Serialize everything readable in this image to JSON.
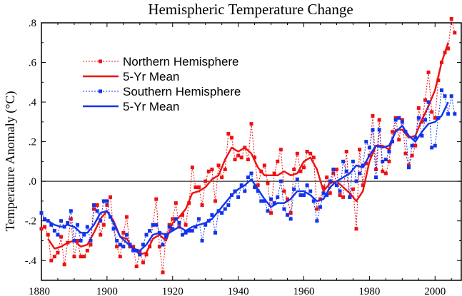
{
  "chart_data": {
    "type": "line",
    "title": "Hemispheric Temperature Change",
    "xlabel": "",
    "ylabel": "Temperature Anomaly (°C)",
    "xlim": [
      1880,
      2008
    ],
    "ylim": [
      -0.5,
      0.8
    ],
    "x_ticks": [
      1880,
      1900,
      1920,
      1940,
      1960,
      1980,
      2000
    ],
    "y_ticks": [
      -0.4,
      -0.2,
      0.0,
      0.2,
      0.4,
      0.6,
      0.8
    ],
    "y_tick_labels": [
      "-.4",
      "-.2",
      ".0",
      ".2",
      ".4",
      ".6",
      ".8"
    ],
    "zero_line": true,
    "grid": false,
    "legend_position": "top-left",
    "colors": {
      "north": "#ee1111",
      "south": "#1133ee",
      "axis": "#000000"
    },
    "series": [
      {
        "name": "Northern Hemisphere",
        "style": "dashed-square",
        "color": "#ee1111",
        "x": [
          1880,
          1881,
          1882,
          1883,
          1884,
          1885,
          1886,
          1887,
          1888,
          1889,
          1890,
          1891,
          1892,
          1893,
          1894,
          1895,
          1896,
          1897,
          1898,
          1899,
          1900,
          1901,
          1902,
          1903,
          1904,
          1905,
          1906,
          1907,
          1908,
          1909,
          1910,
          1911,
          1912,
          1913,
          1914,
          1915,
          1916,
          1917,
          1918,
          1919,
          1920,
          1921,
          1922,
          1923,
          1924,
          1925,
          1926,
          1927,
          1928,
          1929,
          1930,
          1931,
          1932,
          1933,
          1934,
          1935,
          1936,
          1937,
          1938,
          1939,
          1940,
          1941,
          1942,
          1943,
          1944,
          1945,
          1946,
          1947,
          1948,
          1949,
          1950,
          1951,
          1952,
          1953,
          1954,
          1955,
          1956,
          1957,
          1958,
          1959,
          1960,
          1961,
          1962,
          1963,
          1964,
          1965,
          1966,
          1967,
          1968,
          1969,
          1970,
          1971,
          1972,
          1973,
          1974,
          1975,
          1976,
          1977,
          1978,
          1979,
          1980,
          1981,
          1982,
          1983,
          1984,
          1985,
          1986,
          1987,
          1988,
          1989,
          1990,
          1991,
          1992,
          1993,
          1994,
          1995,
          1996,
          1997,
          1998,
          1999,
          2000,
          2001,
          2002,
          2003,
          2004,
          2005,
          2006
        ],
        "values": [
          -0.24,
          -0.23,
          -0.27,
          -0.4,
          -0.38,
          -0.36,
          -0.28,
          -0.42,
          -0.31,
          -0.19,
          -0.38,
          -0.3,
          -0.38,
          -0.38,
          -0.35,
          -0.32,
          -0.14,
          -0.12,
          -0.27,
          -0.22,
          -0.12,
          -0.08,
          -0.24,
          -0.33,
          -0.38,
          -0.26,
          -0.18,
          -0.33,
          -0.33,
          -0.43,
          -0.36,
          -0.41,
          -0.37,
          -0.33,
          -0.22,
          -0.09,
          -0.33,
          -0.46,
          -0.27,
          -0.22,
          -0.19,
          -0.11,
          -0.23,
          -0.17,
          -0.22,
          -0.11,
          0.07,
          -0.03,
          -0.03,
          -0.12,
          0.0,
          0.05,
          0.06,
          -0.1,
          0.08,
          0.02,
          0.06,
          0.24,
          0.22,
          0.11,
          0.13,
          0.12,
          0.17,
          0.11,
          0.29,
          0.12,
          -0.02,
          0.05,
          0.08,
          -0.01,
          -0.16,
          0.04,
          0.1,
          0.16,
          -0.05,
          -0.09,
          -0.16,
          0.06,
          0.14,
          0.05,
          0.07,
          0.15,
          0.14,
          0.12,
          -0.14,
          -0.09,
          -0.03,
          0.02,
          -0.06,
          0.04,
          0.06,
          -0.07,
          -0.08,
          0.15,
          -0.08,
          -0.04,
          -0.24,
          0.16,
          -0.02,
          0.09,
          0.13,
          0.33,
          0.06,
          0.31,
          0.05,
          0.04,
          0.1,
          0.25,
          0.32,
          0.21,
          0.31,
          0.14,
          0.08,
          0.13,
          0.18,
          0.37,
          0.3,
          0.41,
          0.55,
          0.35,
          0.32,
          0.51,
          0.6,
          0.65,
          0.67,
          0.82,
          0.75
        ]
      },
      {
        "name": "5-Yr Mean",
        "style": "solid",
        "color": "#ee1111",
        "x": [
          1882,
          1884,
          1886,
          1888,
          1890,
          1892,
          1894,
          1896,
          1898,
          1900,
          1902,
          1904,
          1906,
          1908,
          1910,
          1912,
          1914,
          1916,
          1918,
          1920,
          1922,
          1924,
          1926,
          1928,
          1930,
          1932,
          1934,
          1936,
          1938,
          1940,
          1942,
          1944,
          1946,
          1948,
          1950,
          1952,
          1954,
          1956,
          1958,
          1960,
          1962,
          1964,
          1966,
          1968,
          1970,
          1972,
          1974,
          1976,
          1978,
          1980,
          1982,
          1984,
          1986,
          1988,
          1990,
          1992,
          1994,
          1996,
          1998,
          2000,
          2002,
          2004
        ],
        "values": [
          -0.29,
          -0.34,
          -0.33,
          -0.31,
          -0.3,
          -0.33,
          -0.32,
          -0.26,
          -0.19,
          -0.15,
          -0.2,
          -0.28,
          -0.29,
          -0.34,
          -0.37,
          -0.36,
          -0.29,
          -0.27,
          -0.3,
          -0.21,
          -0.18,
          -0.14,
          -0.06,
          -0.05,
          -0.03,
          0.01,
          0.03,
          0.11,
          0.17,
          0.15,
          0.17,
          0.14,
          0.07,
          0.03,
          0.03,
          0.03,
          0.05,
          0.03,
          0.04,
          0.1,
          0.12,
          0.06,
          -0.05,
          -0.01,
          0.0,
          -0.03,
          -0.06,
          -0.1,
          -0.05,
          0.1,
          0.18,
          0.18,
          0.16,
          0.26,
          0.26,
          0.22,
          0.23,
          0.31,
          0.38,
          0.46,
          0.6,
          0.7
        ]
      },
      {
        "name": "Southern Hemisphere",
        "style": "dashed-square",
        "color": "#1133ee",
        "x": [
          1880,
          1881,
          1882,
          1883,
          1884,
          1885,
          1886,
          1887,
          1888,
          1889,
          1890,
          1891,
          1892,
          1893,
          1894,
          1895,
          1896,
          1897,
          1898,
          1899,
          1900,
          1901,
          1902,
          1903,
          1904,
          1905,
          1906,
          1907,
          1908,
          1909,
          1910,
          1911,
          1912,
          1913,
          1914,
          1915,
          1916,
          1917,
          1918,
          1919,
          1920,
          1921,
          1922,
          1923,
          1924,
          1925,
          1926,
          1927,
          1928,
          1929,
          1930,
          1931,
          1932,
          1933,
          1934,
          1935,
          1936,
          1937,
          1938,
          1939,
          1940,
          1941,
          1942,
          1943,
          1944,
          1945,
          1946,
          1947,
          1948,
          1949,
          1950,
          1951,
          1952,
          1953,
          1954,
          1955,
          1956,
          1957,
          1958,
          1959,
          1960,
          1961,
          1962,
          1963,
          1964,
          1965,
          1966,
          1967,
          1968,
          1969,
          1970,
          1971,
          1972,
          1973,
          1974,
          1975,
          1976,
          1977,
          1978,
          1979,
          1980,
          1981,
          1982,
          1983,
          1984,
          1985,
          1986,
          1987,
          1988,
          1989,
          1990,
          1991,
          1992,
          1993,
          1994,
          1995,
          1996,
          1997,
          1998,
          1999,
          2000,
          2001,
          2002,
          2003,
          2004,
          2005,
          2006
        ],
        "values": [
          -0.16,
          -0.19,
          -0.2,
          -0.22,
          -0.25,
          -0.27,
          -0.2,
          -0.23,
          -0.21,
          -0.15,
          -0.3,
          -0.22,
          -0.3,
          -0.27,
          -0.23,
          -0.3,
          -0.12,
          -0.15,
          -0.2,
          -0.1,
          -0.1,
          -0.18,
          -0.24,
          -0.3,
          -0.32,
          -0.33,
          -0.27,
          -0.32,
          -0.35,
          -0.35,
          -0.37,
          -0.32,
          -0.27,
          -0.25,
          -0.22,
          -0.22,
          -0.26,
          -0.32,
          -0.28,
          -0.23,
          -0.24,
          -0.19,
          -0.21,
          -0.27,
          -0.26,
          -0.25,
          -0.25,
          -0.23,
          -0.19,
          -0.3,
          -0.22,
          -0.2,
          -0.17,
          -0.26,
          -0.15,
          -0.16,
          -0.14,
          -0.12,
          -0.07,
          -0.05,
          -0.08,
          -0.02,
          -0.05,
          0.02,
          0.04,
          -0.03,
          -0.05,
          -0.1,
          -0.1,
          -0.15,
          -0.09,
          -0.11,
          -0.08,
          0.0,
          -0.14,
          -0.17,
          -0.19,
          -0.04,
          0.01,
          -0.07,
          -0.07,
          -0.02,
          -0.05,
          -0.1,
          -0.2,
          -0.13,
          -0.06,
          -0.07,
          0.0,
          0.06,
          -0.02,
          -0.05,
          0.1,
          0.05,
          -0.08,
          0.1,
          0.0,
          0.04,
          0.08,
          0.2,
          0.17,
          0.26,
          0.02,
          0.26,
          0.1,
          0.11,
          0.15,
          0.2,
          0.31,
          0.32,
          0.3,
          0.25,
          0.07,
          0.18,
          0.22,
          0.32,
          0.23,
          0.31,
          0.4,
          0.17,
          0.18,
          0.32,
          0.46,
          0.43,
          0.34,
          0.43,
          0.34
        ]
      },
      {
        "name": "5-Yr Mean",
        "style": "solid",
        "color": "#1133ee",
        "x": [
          1882,
          1884,
          1886,
          1888,
          1890,
          1892,
          1894,
          1896,
          1898,
          1900,
          1902,
          1904,
          1906,
          1908,
          1910,
          1912,
          1914,
          1916,
          1918,
          1920,
          1922,
          1924,
          1926,
          1928,
          1930,
          1932,
          1934,
          1936,
          1938,
          1940,
          1942,
          1944,
          1946,
          1948,
          1950,
          1952,
          1954,
          1956,
          1958,
          1960,
          1962,
          1964,
          1966,
          1968,
          1970,
          1972,
          1974,
          1976,
          1978,
          1980,
          1982,
          1984,
          1986,
          1988,
          1990,
          1992,
          1994,
          1996,
          1998,
          2000,
          2002,
          2004
        ],
        "values": [
          -0.2,
          -0.22,
          -0.23,
          -0.22,
          -0.23,
          -0.26,
          -0.26,
          -0.22,
          -0.16,
          -0.15,
          -0.21,
          -0.28,
          -0.31,
          -0.34,
          -0.35,
          -0.32,
          -0.27,
          -0.26,
          -0.27,
          -0.25,
          -0.23,
          -0.25,
          -0.23,
          -0.22,
          -0.21,
          -0.19,
          -0.15,
          -0.11,
          -0.07,
          -0.04,
          -0.02,
          0.01,
          -0.04,
          -0.09,
          -0.13,
          -0.11,
          -0.11,
          -0.09,
          -0.05,
          -0.05,
          -0.07,
          -0.1,
          -0.09,
          -0.03,
          0.0,
          0.02,
          0.04,
          0.08,
          0.07,
          0.13,
          0.18,
          0.17,
          0.18,
          0.25,
          0.28,
          0.23,
          0.2,
          0.25,
          0.29,
          0.3,
          0.33,
          0.4
        ]
      }
    ]
  }
}
